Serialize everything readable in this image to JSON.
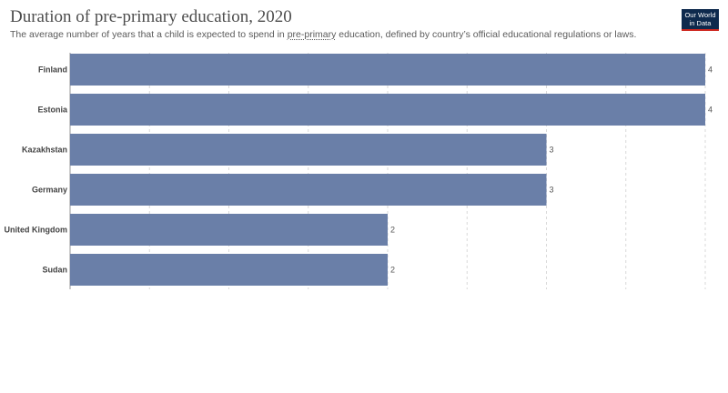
{
  "header": {
    "title": "Duration of pre-primary education, 2020",
    "subtitle_before": "The average number of years that a child is expected to spend in ",
    "subtitle_link": "pre-primary",
    "subtitle_after": " education, defined by country’s official educational regulations or laws."
  },
  "logo": {
    "line1": "Our World",
    "line2": "in Data"
  },
  "colors": {
    "bar": "#6a7fa8",
    "grid": "#d9d9d9"
  },
  "chart_data": {
    "type": "bar",
    "orientation": "horizontal",
    "categories": [
      "Finland",
      "Estonia",
      "Kazakhstan",
      "Germany",
      "United Kingdom",
      "Sudan"
    ],
    "values": [
      4,
      4,
      3,
      3,
      2,
      2
    ],
    "xlim": [
      0,
      4
    ],
    "grid": true,
    "title": "Duration of pre-primary education, 2020"
  }
}
